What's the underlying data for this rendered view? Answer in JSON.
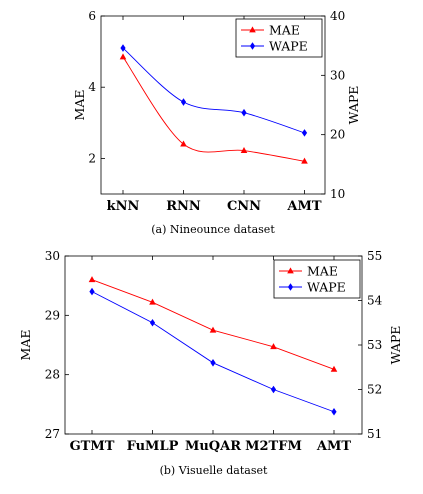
{
  "colors": {
    "mae": "#ff0000",
    "wape": "#0000ff",
    "axis": "#000000"
  },
  "chart_data": [
    {
      "type": "line",
      "caption": "(a) Nineounce dataset",
      "categories": [
        "kNN",
        "RNN",
        "CNN",
        "AMT"
      ],
      "ylabel": "MAE",
      "y2label": "WAPE",
      "ylim": [
        1,
        6
      ],
      "y2lim": [
        10,
        40
      ],
      "yticks": [
        2,
        4,
        6
      ],
      "y2ticks": [
        10,
        20,
        30,
        40
      ],
      "legend_position": "top-right",
      "series": [
        {
          "name": "MAE",
          "axis": "left",
          "marker": "triangle",
          "values": [
            4.85,
            2.4,
            2.22,
            1.92
          ]
        },
        {
          "name": "WAPE",
          "axis": "right",
          "marker": "diamond",
          "values": [
            34.6,
            25.5,
            23.7,
            20.3
          ]
        }
      ]
    },
    {
      "type": "line",
      "caption": "(b) Visuelle dataset",
      "categories": [
        "GTMT",
        "FuMLP",
        "MuQAR",
        "M2TFM",
        "AMT"
      ],
      "ylabel": "MAE",
      "y2label": "WAPE",
      "ylim": [
        27,
        30
      ],
      "y2lim": [
        51,
        55
      ],
      "yticks": [
        27,
        28,
        29,
        30
      ],
      "y2ticks": [
        51,
        52,
        53,
        54,
        55
      ],
      "legend_position": "top-right",
      "series": [
        {
          "name": "MAE",
          "axis": "left",
          "marker": "triangle",
          "values": [
            29.6,
            29.22,
            28.75,
            28.47,
            28.09
          ]
        },
        {
          "name": "WAPE",
          "axis": "right",
          "marker": "diamond",
          "values": [
            54.2,
            53.5,
            52.6,
            52.0,
            51.5
          ]
        }
      ]
    }
  ]
}
